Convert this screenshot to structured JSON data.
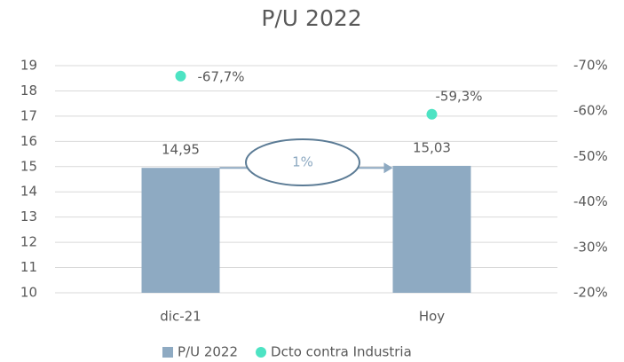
{
  "chart_data": {
    "type": "bar",
    "title": "P/U 2022",
    "categories": [
      "dic-21",
      "Hoy"
    ],
    "series": [
      {
        "name": "P/U 2022",
        "type": "bar",
        "color": "#8eaac2",
        "values": [
          14.95,
          15.03
        ],
        "value_labels": [
          "14,95",
          "15,03"
        ]
      },
      {
        "name": "Dcto contra Industria",
        "type": "scatter",
        "axis": "y2",
        "color": "#4de3c3",
        "values": [
          -67.7,
          -59.3
        ],
        "value_labels": [
          "-67,7%",
          "-59,3%"
        ]
      }
    ],
    "ylim": [
      10,
      19
    ],
    "yticks": [
      10,
      11,
      12,
      13,
      14,
      15,
      16,
      17,
      18,
      19
    ],
    "y2lim": [
      -20,
      -70
    ],
    "y2ticks": [
      {
        "value": -20,
        "label": "-20%"
      },
      {
        "value": -30,
        "label": "-30%"
      },
      {
        "value": -40,
        "label": "-40%"
      },
      {
        "value": -50,
        "label": "-50%"
      },
      {
        "value": -60,
        "label": "-60%"
      },
      {
        "value": -70,
        "label": "-70%"
      }
    ],
    "annotation": "1%",
    "grid": true,
    "legend": "bottom"
  }
}
